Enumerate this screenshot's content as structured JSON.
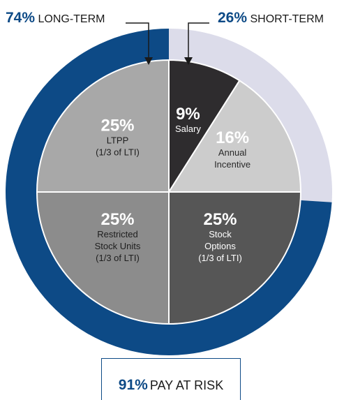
{
  "callouts": {
    "long_term": {
      "pct": "74%",
      "label": "LONG-TERM"
    },
    "short_term": {
      "pct": "26%",
      "label": "SHORT-TERM"
    },
    "pay_at_risk": {
      "pct": "91%",
      "label": "PAY AT RISK"
    }
  },
  "chart_data": {
    "type": "pie",
    "title": "",
    "outer_ring": [
      {
        "name": "LONG-TERM",
        "value": 74,
        "color": "#0d4a86"
      },
      {
        "name": "SHORT-TERM",
        "value": 26,
        "color": "#dcdcea"
      }
    ],
    "slices": [
      {
        "name": "Salary",
        "value": 9,
        "pct_label": "9%",
        "lines": [
          "Salary"
        ],
        "color": "#2e2c2e",
        "text_color": "#ffffff"
      },
      {
        "name": "Annual Incentive",
        "value": 16,
        "pct_label": "16%",
        "lines": [
          "Annual",
          "Incentive"
        ],
        "color": "#cccccc",
        "text_color": "#ffffff",
        "pct_color": "#ffffff",
        "label_color": "#2a2a2a"
      },
      {
        "name": "Stock Options",
        "value": 25,
        "pct_label": "25%",
        "lines": [
          "Stock",
          "Options",
          "(1/3 of LTI)"
        ],
        "color": "#565656",
        "text_color": "#ffffff"
      },
      {
        "name": "Restricted Stock Units",
        "value": 25,
        "pct_label": "25%",
        "lines": [
          "Restricted",
          "Stock Units",
          "(1/3 of LTI)"
        ],
        "color": "#8c8c8c",
        "text_color": "#ffffff",
        "label_color": "#1e1e1e"
      },
      {
        "name": "LTPP",
        "value": 25,
        "pct_label": "25%",
        "lines": [
          "LTPP",
          "(1/3 of LTI)"
        ],
        "color": "#a8a8a8",
        "text_color": "#ffffff",
        "label_color": "#1e1e1e"
      }
    ]
  }
}
